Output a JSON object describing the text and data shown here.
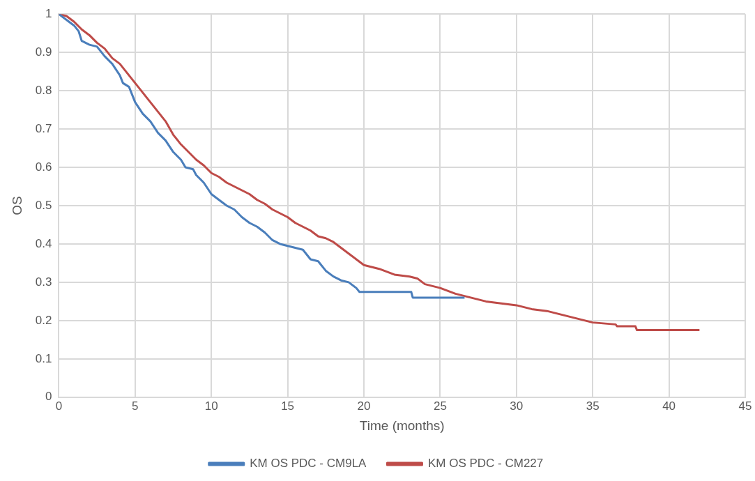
{
  "chart_data": {
    "type": "line",
    "xlabel": "Time (months)",
    "ylabel": "OS",
    "xlim": [
      0,
      45
    ],
    "xticks": [
      0,
      5,
      10,
      15,
      20,
      25,
      30,
      35,
      40,
      45
    ],
    "ylim": [
      0,
      1
    ],
    "yticks": [
      0,
      0.1,
      0.2,
      0.3,
      0.4,
      0.5,
      0.6,
      0.7,
      0.8,
      0.9,
      1
    ],
    "grid": true,
    "legend": "bottom",
    "marker": "none",
    "line_style": "solid",
    "series": [
      {
        "name": "KM OS PDC - CM9LA",
        "color": "#4a7ebb",
        "x": [
          0,
          0.5,
          1,
          1.3,
          1.5,
          2,
          2.5,
          3,
          3.5,
          4,
          4.2,
          4.6,
          5,
          5.5,
          6,
          6.5,
          7,
          7.5,
          8,
          8.3,
          8.8,
          9,
          9.5,
          10,
          10.5,
          11,
          11.5,
          12,
          12.5,
          13,
          13.5,
          14,
          14.5,
          15,
          16,
          16.5,
          17,
          17.5,
          18,
          18.5,
          19,
          19.5,
          19.7,
          23.1,
          23.2,
          26.6
        ],
        "values": [
          1,
          0.985,
          0.97,
          0.955,
          0.93,
          0.92,
          0.915,
          0.89,
          0.87,
          0.84,
          0.82,
          0.81,
          0.77,
          0.74,
          0.72,
          0.69,
          0.67,
          0.64,
          0.62,
          0.6,
          0.595,
          0.58,
          0.56,
          0.53,
          0.515,
          0.5,
          0.49,
          0.47,
          0.455,
          0.445,
          0.43,
          0.41,
          0.4,
          0.395,
          0.385,
          0.36,
          0.355,
          0.33,
          0.315,
          0.305,
          0.3,
          0.285,
          0.275,
          0.275,
          0.26,
          0.26
        ]
      },
      {
        "name": "KM OS PDC - CM227",
        "color": "#be4b48",
        "x": [
          0,
          0.5,
          1,
          1.5,
          2,
          2.5,
          3,
          3.5,
          4,
          4.5,
          5,
          5.5,
          6,
          6.5,
          7,
          7.5,
          8,
          8.5,
          9,
          9.5,
          10,
          10.5,
          11,
          11.5,
          12,
          12.5,
          13,
          13.5,
          14,
          14.5,
          15,
          15.5,
          16,
          16.5,
          17,
          17.5,
          18,
          18.5,
          19,
          19.5,
          20,
          21,
          22,
          23,
          23.5,
          24,
          25,
          26,
          27,
          28,
          29,
          30,
          31,
          32,
          33,
          34,
          35,
          36.5,
          36.6,
          37.8,
          37.9,
          42
        ],
        "values": [
          1,
          0.995,
          0.98,
          0.96,
          0.945,
          0.925,
          0.91,
          0.885,
          0.87,
          0.845,
          0.82,
          0.795,
          0.77,
          0.745,
          0.72,
          0.685,
          0.66,
          0.64,
          0.62,
          0.605,
          0.585,
          0.575,
          0.56,
          0.55,
          0.54,
          0.53,
          0.515,
          0.505,
          0.49,
          0.48,
          0.47,
          0.455,
          0.445,
          0.435,
          0.42,
          0.415,
          0.405,
          0.39,
          0.375,
          0.36,
          0.345,
          0.335,
          0.32,
          0.315,
          0.31,
          0.295,
          0.285,
          0.27,
          0.26,
          0.25,
          0.245,
          0.24,
          0.23,
          0.225,
          0.215,
          0.205,
          0.195,
          0.19,
          0.185,
          0.185,
          0.175,
          0.175
        ]
      }
    ]
  }
}
